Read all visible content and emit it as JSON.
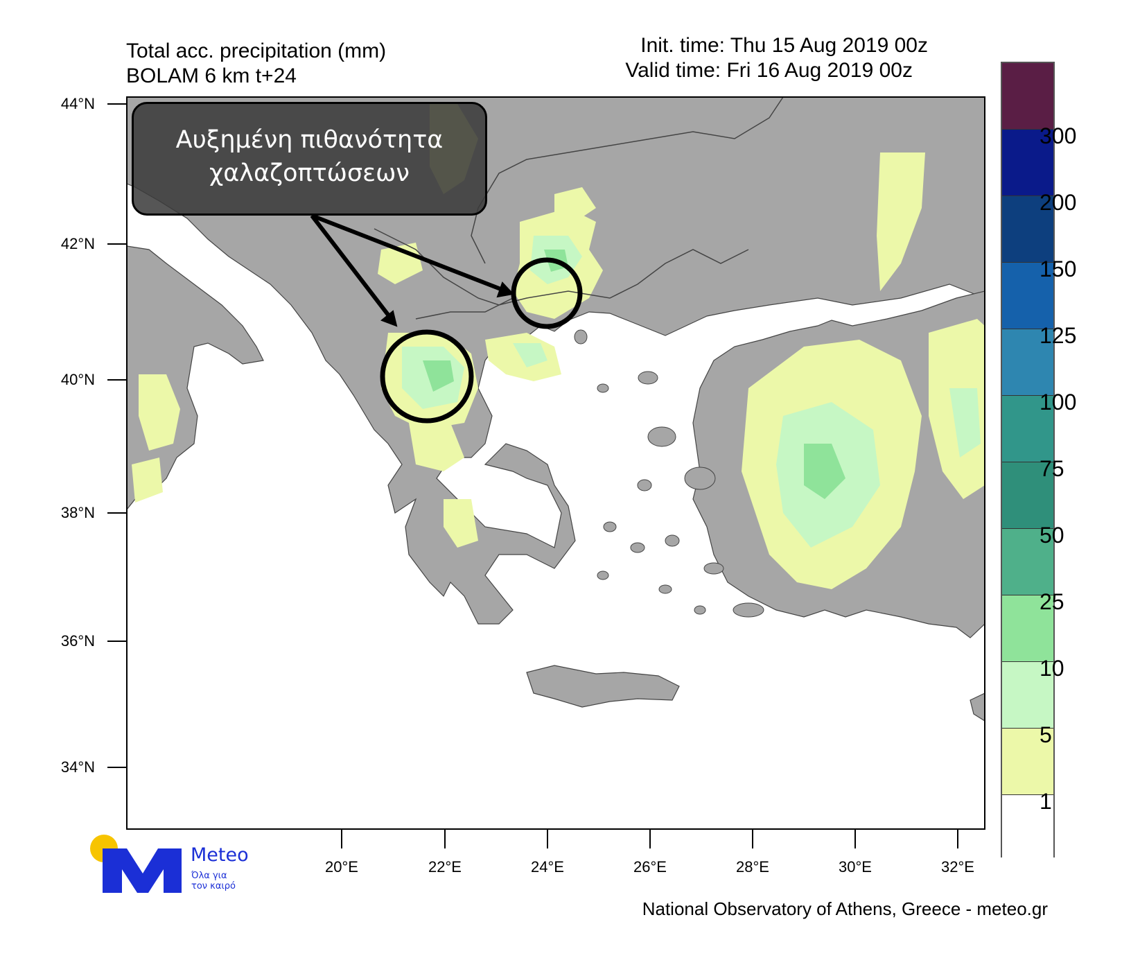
{
  "header": {
    "title_line1": "Total acc. precipitation (mm)",
    "title_line2": "BOLAM 6 km t+24",
    "init_time": "Init. time: Thu 15 Aug 2019 00z",
    "valid_time": "Valid time: Fri 16 Aug 2019 00z"
  },
  "annotation": {
    "line1": "Αυξημένη πιθανότητα",
    "line2": "χαλαζοπτώσεων"
  },
  "axes": {
    "lat_labels": [
      "44°N",
      "42°N",
      "40°N",
      "38°N",
      "36°N",
      "34°N"
    ],
    "lon_labels": [
      "20°E",
      "22°E",
      "24°E",
      "26°E",
      "28°E",
      "30°E",
      "32°E"
    ]
  },
  "colorbar": {
    "labels": [
      "300",
      "200",
      "150",
      "125",
      "100",
      "75",
      "50",
      "25",
      "10",
      "5",
      "1"
    ],
    "colors": [
      "#5a1e45",
      "#0a1a8a",
      "#0d3f7e",
      "#1561ab",
      "#2e86b0",
      "#31968a",
      "#2f8f7a",
      "#4fb08a",
      "#8fe39a",
      "#c6f7c4",
      "#ecf8a9",
      "#ffffff"
    ]
  },
  "colors": {
    "land": "#a6a6a6",
    "sea": "#ffffff",
    "precip_light": "#ecf8a9",
    "precip_medium": "#c6f7c4",
    "precip_heavy": "#8fe39a"
  },
  "logo": {
    "brand": "Meteo",
    "tagline_line1": "Όλα για",
    "tagline_line2": "τον καιρό"
  },
  "credit": "National Observatory of Athens, Greece - meteo.gr"
}
